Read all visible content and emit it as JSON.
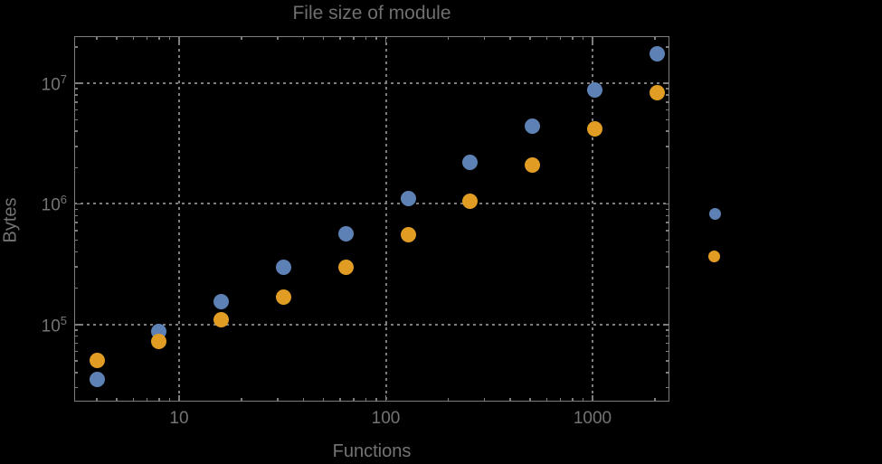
{
  "title": "File size of module",
  "colors": {
    "background": "#000000",
    "frame": "#7d7d7d",
    "text": "#747474",
    "series_blue": "#5e81b5",
    "series_orange": "#e19c24"
  },
  "legend": {
    "markers": [
      {
        "series": "series-1-blue",
        "color": "#5e81b5"
      },
      {
        "series": "series-2-orange",
        "color": "#e19c24"
      }
    ],
    "labels_visible": false,
    "position": "outside-right"
  },
  "chart_data": {
    "type": "scatter",
    "title": "File size of module",
    "xlabel": "Functions",
    "ylabel": "Bytes",
    "x_scale": "log",
    "y_scale": "log",
    "grid": "dotted-at-decades",
    "xlim_log10": [
      0.4923,
      3.372
    ],
    "ylim_log10": [
      4.361,
      7.391
    ],
    "x_tick_labels": [
      {
        "value": 10,
        "label": "10"
      },
      {
        "value": 100,
        "label": "100"
      },
      {
        "value": 1000,
        "label": "1000"
      }
    ],
    "y_tick_labels": [
      {
        "exp": 5,
        "base": "10",
        "sup": "5"
      },
      {
        "exp": 6,
        "base": "10",
        "sup": "6"
      },
      {
        "exp": 7,
        "base": "10",
        "sup": "7"
      }
    ],
    "x": [
      4,
      8,
      16,
      32,
      64,
      128,
      256,
      512,
      1024,
      2048
    ],
    "series": [
      {
        "name": "series-1-blue",
        "color": "#5e81b5",
        "values": [
          35000,
          87000,
          155000,
          300000,
          570000,
          1100000,
          2200000,
          4400000,
          8800000,
          17500000
        ]
      },
      {
        "name": "series-2-orange",
        "color": "#e19c24",
        "values": [
          50000,
          72000,
          110000,
          170000,
          300000,
          560000,
          1050000,
          2100000,
          4200000,
          8300000
        ]
      }
    ]
  }
}
